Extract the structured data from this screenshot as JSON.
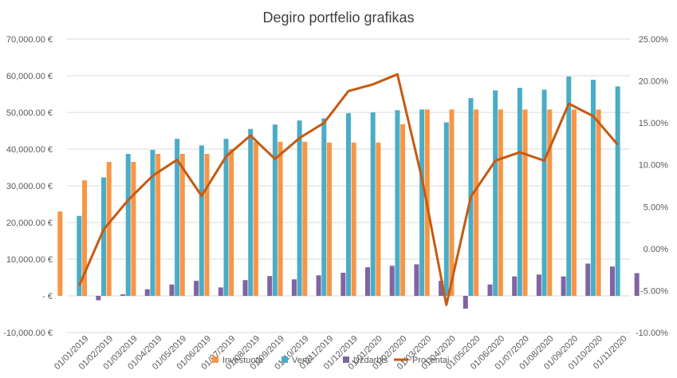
{
  "chart_data": {
    "type": "bar",
    "title": "Degiro portfelio grafikas",
    "categories": [
      "01/01/2019",
      "01/02/2019",
      "01/03/2019",
      "01/04/2019",
      "01/05/2019",
      "01/06/2019",
      "01/07/2019",
      "01/08/2019",
      "01/09/2019",
      "01/10/2019",
      "01/11/2019",
      "01/12/2019",
      "01/01/2020",
      "01/02/2020",
      "01/03/2020",
      "01/04/2020",
      "01/05/2020",
      "01/06/2020",
      "01/07/2020",
      "01/08/2020",
      "01/09/2020",
      "01/10/2020",
      "01/11/2020"
    ],
    "series": [
      {
        "name": "Investuota",
        "kind": "bar",
        "axis": "left",
        "color": "#F79646",
        "values": [
          23000,
          31500,
          36500,
          36500,
          38700,
          38700,
          38700,
          40000,
          42000,
          42000,
          42000,
          41800,
          41800,
          41800,
          46800,
          50800,
          50800,
          50800,
          50800,
          50800,
          50800,
          50800,
          50800
        ]
      },
      {
        "name": "Vertė",
        "kind": "bar",
        "axis": "left",
        "color": "#4BACC6",
        "values": [
          21800,
          32300,
          38700,
          39800,
          42800,
          41000,
          42800,
          45500,
          46700,
          47800,
          48400,
          49800,
          50000,
          50600,
          50800,
          47300,
          53900,
          56000,
          56700,
          56200,
          59800,
          58900,
          57100
        ]
      },
      {
        "name": "Uždarbis",
        "kind": "bar",
        "axis": "left",
        "color": "#8064A2",
        "values": [
          -1200,
          400,
          1800,
          3100,
          4100,
          2300,
          4300,
          5400,
          4500,
          5600,
          6300,
          7800,
          8200,
          8600,
          4100,
          -3500,
          3100,
          5300,
          5800,
          5300,
          8800,
          8000,
          6200
        ]
      },
      {
        "name": "Procentai",
        "kind": "line",
        "axis": "right",
        "color": "#C55A11",
        "values": [
          -4.4,
          2.3,
          5.8,
          8.7,
          10.6,
          6.3,
          11.0,
          13.5,
          10.7,
          13.2,
          15.0,
          18.8,
          19.6,
          20.8,
          8.4,
          -6.7,
          6.2,
          10.5,
          11.5,
          10.5,
          17.3,
          15.8,
          12.4
        ]
      }
    ],
    "y_left": {
      "min": -10000,
      "max": 70000,
      "step": 10000,
      "tick_labels": [
        "-10,000.00 €",
        "-  €",
        "10,000.00 €",
        "20,000.00 €",
        "30,000.00 €",
        "40,000.00 €",
        "50,000.00 €",
        "60,000.00 €",
        "70,000.00 €"
      ]
    },
    "y_right": {
      "min": -10,
      "max": 25,
      "step": 5,
      "tick_labels": [
        "-10.00%",
        "-5.00%",
        "0.00%",
        "5.00%",
        "10.00%",
        "15.00%",
        "20.00%",
        "25.00%"
      ]
    },
    "grid": true,
    "legend_position": "bottom"
  }
}
